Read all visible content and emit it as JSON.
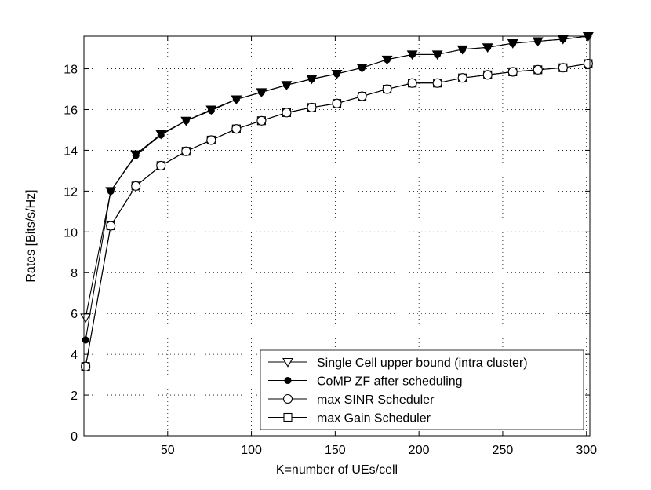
{
  "chart_data": {
    "type": "line",
    "xlabel": "K=number of UEs/cell",
    "ylabel": "Rates [Bits/s/Hz]",
    "xlim": [
      0,
      302
    ],
    "ylim": [
      0,
      19.6
    ],
    "x_ticks": [
      50,
      100,
      150,
      200,
      250,
      300
    ],
    "y_ticks": [
      0,
      2,
      4,
      6,
      8,
      10,
      12,
      14,
      16,
      18
    ],
    "grid": true,
    "legend_position": "bottom-right",
    "x": [
      1,
      16,
      31,
      46,
      61,
      76,
      91,
      106,
      121,
      136,
      151,
      166,
      181,
      196,
      211,
      226,
      241,
      256,
      271,
      286,
      301
    ],
    "series": [
      {
        "name": "Single Cell upper bound (intra cluster)",
        "marker": "triangle-down",
        "filled": true,
        "first_point_filled": false,
        "values": [
          5.8,
          12.0,
          13.8,
          14.8,
          15.45,
          16.0,
          16.5,
          16.85,
          17.2,
          17.5,
          17.75,
          18.05,
          18.45,
          18.7,
          18.7,
          18.95,
          19.05,
          19.25,
          19.35,
          19.45,
          19.6
        ]
      },
      {
        "name": "CoMP ZF after scheduling",
        "marker": "circle",
        "filled": true,
        "values": [
          4.7,
          12.0,
          13.75,
          14.75,
          15.45,
          15.95,
          16.5,
          16.85,
          17.2,
          17.5,
          17.75,
          18.05,
          18.45,
          18.7,
          18.7,
          18.95,
          19.05,
          19.25,
          19.35,
          19.45,
          19.6
        ]
      },
      {
        "name": "max SINR Scheduler",
        "marker": "circle",
        "filled": false,
        "values": [
          3.4,
          10.3,
          12.25,
          13.25,
          13.95,
          14.5,
          15.05,
          15.45,
          15.85,
          16.1,
          16.3,
          16.65,
          17.0,
          17.3,
          17.3,
          17.55,
          17.7,
          17.85,
          17.95,
          18.05,
          18.25
        ]
      },
      {
        "name": "max Gain Scheduler",
        "marker": "square",
        "filled": false,
        "values": [
          3.4,
          10.3,
          12.25,
          13.25,
          13.95,
          14.5,
          15.05,
          15.45,
          15.85,
          16.1,
          16.3,
          16.65,
          17.0,
          17.3,
          17.3,
          17.55,
          17.7,
          17.85,
          17.95,
          18.05,
          18.25
        ]
      }
    ]
  }
}
